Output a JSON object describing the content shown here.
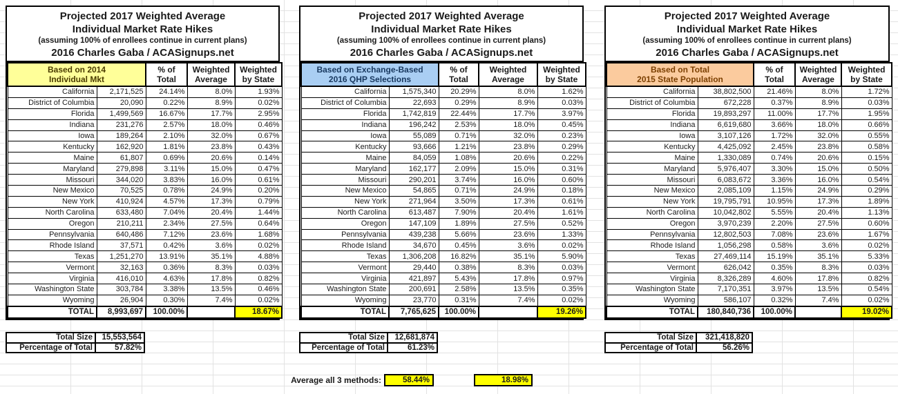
{
  "titles": {
    "line1": "Projected 2017 Weighted Average",
    "line2": "Individual Market Rate Hikes",
    "subtitle": "(assuming 100% of enrollees continue in current plans)",
    "credit": "2016 Charles Gaba / ACASignups.net"
  },
  "columns": {
    "pct": [
      "% of",
      "Total"
    ],
    "wavg": [
      "Weighted",
      "Average"
    ],
    "wstate": [
      "Weighted",
      "by State"
    ]
  },
  "footer_labels": {
    "total_size": "Total Size",
    "pct_of_total": "Percentage of Total"
  },
  "average": {
    "label": "Average all 3 methods:",
    "enrollment_pct": "58.44%",
    "rate_hike": "18.98%"
  },
  "colors": {
    "highlight": "#FFFF00",
    "gridline": "#E2E2E2",
    "basis_yellow": "#FFFF99",
    "basis_blue": "#A9CEF3",
    "basis_orange": "#FBCB9E"
  },
  "tables": [
    {
      "id": "2014-individual-mkt",
      "basis": {
        "line1": "Based on 2014",
        "line2": "Individual Mkt",
        "bg": "#FFFF99",
        "fg": "#4a3b00"
      },
      "rows": [
        {
          "state": "California",
          "value": "2,171,525",
          "pct": "24.14%",
          "wavg": "8.0%",
          "wstate": "1.93%"
        },
        {
          "state": "District of Columbia",
          "value": "20,090",
          "pct": "0.22%",
          "wavg": "8.9%",
          "wstate": "0.02%"
        },
        {
          "state": "Florida",
          "value": "1,499,569",
          "pct": "16.67%",
          "wavg": "17.7%",
          "wstate": "2.95%"
        },
        {
          "state": "Indiana",
          "value": "231,276",
          "pct": "2.57%",
          "wavg": "18.0%",
          "wstate": "0.46%"
        },
        {
          "state": "Iowa",
          "value": "189,264",
          "pct": "2.10%",
          "wavg": "32.0%",
          "wstate": "0.67%"
        },
        {
          "state": "Kentucky",
          "value": "162,920",
          "pct": "1.81%",
          "wavg": "23.8%",
          "wstate": "0.43%"
        },
        {
          "state": "Maine",
          "value": "61,807",
          "pct": "0.69%",
          "wavg": "20.6%",
          "wstate": "0.14%"
        },
        {
          "state": "Maryland",
          "value": "279,898",
          "pct": "3.11%",
          "wavg": "15.0%",
          "wstate": "0.47%"
        },
        {
          "state": "Missouri",
          "value": "344,020",
          "pct": "3.83%",
          "wavg": "16.0%",
          "wstate": "0.61%"
        },
        {
          "state": "New Mexico",
          "value": "70,525",
          "pct": "0.78%",
          "wavg": "24.9%",
          "wstate": "0.20%"
        },
        {
          "state": "New York",
          "value": "410,924",
          "pct": "4.57%",
          "wavg": "17.3%",
          "wstate": "0.79%"
        },
        {
          "state": "North Carolina",
          "value": "633,480",
          "pct": "7.04%",
          "wavg": "20.4%",
          "wstate": "1.44%"
        },
        {
          "state": "Oregon",
          "value": "210,211",
          "pct": "2.34%",
          "wavg": "27.5%",
          "wstate": "0.64%"
        },
        {
          "state": "Pennsylvania",
          "value": "640,486",
          "pct": "7.12%",
          "wavg": "23.6%",
          "wstate": "1.68%"
        },
        {
          "state": "Rhode Island",
          "value": "37,571",
          "pct": "0.42%",
          "wavg": "3.6%",
          "wstate": "0.02%"
        },
        {
          "state": "Texas",
          "value": "1,251,270",
          "pct": "13.91%",
          "wavg": "35.1%",
          "wstate": "4.88%"
        },
        {
          "state": "Vermont",
          "value": "32,163",
          "pct": "0.36%",
          "wavg": "8.3%",
          "wstate": "0.03%"
        },
        {
          "state": "Virginia",
          "value": "416,010",
          "pct": "4.63%",
          "wavg": "17.8%",
          "wstate": "0.82%"
        },
        {
          "state": "Washington State",
          "value": "303,784",
          "pct": "3.38%",
          "wavg": "13.5%",
          "wstate": "0.46%"
        },
        {
          "state": "Wyoming",
          "value": "26,904",
          "pct": "0.30%",
          "wavg": "7.4%",
          "wstate": "0.02%"
        }
      ],
      "total": {
        "label": "TOTAL",
        "value": "8,993,697",
        "pct": "100.00%",
        "wstate": "18.67%"
      },
      "total_size": "15,553,564",
      "pct_of_total": "57.82%"
    },
    {
      "id": "2016-qhp-selections",
      "basis": {
        "line1": "Based on Exchange-Based",
        "line2": "2016 QHP Selections",
        "bg": "#A9CEF3",
        "fg": "#17375E"
      },
      "rows": [
        {
          "state": "California",
          "value": "1,575,340",
          "pct": "20.29%",
          "wavg": "8.0%",
          "wstate": "1.62%"
        },
        {
          "state": "District of Columbia",
          "value": "22,693",
          "pct": "0.29%",
          "wavg": "8.9%",
          "wstate": "0.03%"
        },
        {
          "state": "Florida",
          "value": "1,742,819",
          "pct": "22.44%",
          "wavg": "17.7%",
          "wstate": "3.97%"
        },
        {
          "state": "Indiana",
          "value": "196,242",
          "pct": "2.53%",
          "wavg": "18.0%",
          "wstate": "0.45%"
        },
        {
          "state": "Iowa",
          "value": "55,089",
          "pct": "0.71%",
          "wavg": "32.0%",
          "wstate": "0.23%"
        },
        {
          "state": "Kentucky",
          "value": "93,666",
          "pct": "1.21%",
          "wavg": "23.8%",
          "wstate": "0.29%"
        },
        {
          "state": "Maine",
          "value": "84,059",
          "pct": "1.08%",
          "wavg": "20.6%",
          "wstate": "0.22%"
        },
        {
          "state": "Maryland",
          "value": "162,177",
          "pct": "2.09%",
          "wavg": "15.0%",
          "wstate": "0.31%"
        },
        {
          "state": "Missouri",
          "value": "290,201",
          "pct": "3.74%",
          "wavg": "16.0%",
          "wstate": "0.60%"
        },
        {
          "state": "New Mexico",
          "value": "54,865",
          "pct": "0.71%",
          "wavg": "24.9%",
          "wstate": "0.18%"
        },
        {
          "state": "New York",
          "value": "271,964",
          "pct": "3.50%",
          "wavg": "17.3%",
          "wstate": "0.61%"
        },
        {
          "state": "North Carolina",
          "value": "613,487",
          "pct": "7.90%",
          "wavg": "20.4%",
          "wstate": "1.61%"
        },
        {
          "state": "Oregon",
          "value": "147,109",
          "pct": "1.89%",
          "wavg": "27.5%",
          "wstate": "0.52%"
        },
        {
          "state": "Pennsylvania",
          "value": "439,238",
          "pct": "5.66%",
          "wavg": "23.6%",
          "wstate": "1.33%"
        },
        {
          "state": "Rhode Island",
          "value": "34,670",
          "pct": "0.45%",
          "wavg": "3.6%",
          "wstate": "0.02%"
        },
        {
          "state": "Texas",
          "value": "1,306,208",
          "pct": "16.82%",
          "wavg": "35.1%",
          "wstate": "5.90%"
        },
        {
          "state": "Vermont",
          "value": "29,440",
          "pct": "0.38%",
          "wavg": "8.3%",
          "wstate": "0.03%"
        },
        {
          "state": "Virginia",
          "value": "421,897",
          "pct": "5.43%",
          "wavg": "17.8%",
          "wstate": "0.97%"
        },
        {
          "state": "Washington State",
          "value": "200,691",
          "pct": "2.58%",
          "wavg": "13.5%",
          "wstate": "0.35%"
        },
        {
          "state": "Wyoming",
          "value": "23,770",
          "pct": "0.31%",
          "wavg": "7.4%",
          "wstate": "0.02%"
        }
      ],
      "total": {
        "label": "TOTAL",
        "value": "7,765,625",
        "pct": "100.00%",
        "wstate": "19.26%"
      },
      "total_size": "12,681,874",
      "pct_of_total": "61.23%"
    },
    {
      "id": "2015-state-population",
      "basis": {
        "line1": "Based on Total",
        "line2": "2015 State Population",
        "bg": "#FBCB9E",
        "fg": "#7B3F00"
      },
      "rows": [
        {
          "state": "California",
          "value": "38,802,500",
          "pct": "21.46%",
          "wavg": "8.0%",
          "wstate": "1.72%"
        },
        {
          "state": "District of Columbia",
          "value": "672,228",
          "pct": "0.37%",
          "wavg": "8.9%",
          "wstate": "0.03%"
        },
        {
          "state": "Florida",
          "value": "19,893,297",
          "pct": "11.00%",
          "wavg": "17.7%",
          "wstate": "1.95%"
        },
        {
          "state": "Indiana",
          "value": "6,619,680",
          "pct": "3.66%",
          "wavg": "18.0%",
          "wstate": "0.66%"
        },
        {
          "state": "Iowa",
          "value": "3,107,126",
          "pct": "1.72%",
          "wavg": "32.0%",
          "wstate": "0.55%"
        },
        {
          "state": "Kentucky",
          "value": "4,425,092",
          "pct": "2.45%",
          "wavg": "23.8%",
          "wstate": "0.58%"
        },
        {
          "state": "Maine",
          "value": "1,330,089",
          "pct": "0.74%",
          "wavg": "20.6%",
          "wstate": "0.15%"
        },
        {
          "state": "Maryland",
          "value": "5,976,407",
          "pct": "3.30%",
          "wavg": "15.0%",
          "wstate": "0.50%"
        },
        {
          "state": "Missouri",
          "value": "6,083,672",
          "pct": "3.36%",
          "wavg": "16.0%",
          "wstate": "0.54%"
        },
        {
          "state": "New Mexico",
          "value": "2,085,109",
          "pct": "1.15%",
          "wavg": "24.9%",
          "wstate": "0.29%"
        },
        {
          "state": "New York",
          "value": "19,795,791",
          "pct": "10.95%",
          "wavg": "17.3%",
          "wstate": "1.89%"
        },
        {
          "state": "North Carolina",
          "value": "10,042,802",
          "pct": "5.55%",
          "wavg": "20.4%",
          "wstate": "1.13%"
        },
        {
          "state": "Oregon",
          "value": "3,970,239",
          "pct": "2.20%",
          "wavg": "27.5%",
          "wstate": "0.60%"
        },
        {
          "state": "Pennsylvania",
          "value": "12,802,503",
          "pct": "7.08%",
          "wavg": "23.6%",
          "wstate": "1.67%"
        },
        {
          "state": "Rhode Island",
          "value": "1,056,298",
          "pct": "0.58%",
          "wavg": "3.6%",
          "wstate": "0.02%"
        },
        {
          "state": "Texas",
          "value": "27,469,114",
          "pct": "15.19%",
          "wavg": "35.1%",
          "wstate": "5.33%"
        },
        {
          "state": "Vermont",
          "value": "626,042",
          "pct": "0.35%",
          "wavg": "8.3%",
          "wstate": "0.03%"
        },
        {
          "state": "Virginia",
          "value": "8,326,289",
          "pct": "4.60%",
          "wavg": "17.8%",
          "wstate": "0.82%"
        },
        {
          "state": "Washington State",
          "value": "7,170,351",
          "pct": "3.97%",
          "wavg": "13.5%",
          "wstate": "0.54%"
        },
        {
          "state": "Wyoming",
          "value": "586,107",
          "pct": "0.32%",
          "wavg": "7.4%",
          "wstate": "0.02%"
        }
      ],
      "total": {
        "label": "TOTAL",
        "value": "180,840,736",
        "pct": "100.00%",
        "wstate": "19.02%"
      },
      "total_size": "321,418,820",
      "pct_of_total": "56.26%"
    }
  ]
}
